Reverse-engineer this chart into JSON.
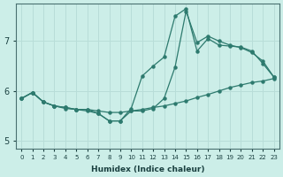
{
  "xlabel": "Humidex (Indice chaleur)",
  "bg_color": "#cceee8",
  "line_color": "#2d7a6e",
  "grid_color": "#b8ddd8",
  "xlim": [
    -0.5,
    23.5
  ],
  "ylim": [
    4.85,
    7.75
  ],
  "yticks": [
    5,
    6,
    7
  ],
  "xticks": [
    0,
    1,
    2,
    3,
    4,
    5,
    6,
    7,
    8,
    9,
    10,
    11,
    12,
    13,
    14,
    15,
    16,
    17,
    18,
    19,
    20,
    21,
    22,
    23
  ],
  "line1_x": [
    0,
    1,
    2,
    3,
    4,
    5,
    6,
    7,
    8,
    9,
    10,
    11,
    12,
    13,
    14,
    15,
    16,
    17,
    18,
    19,
    20,
    21,
    22,
    23
  ],
  "line1_y": [
    5.85,
    5.97,
    5.78,
    5.7,
    5.67,
    5.63,
    5.63,
    5.6,
    5.57,
    5.57,
    5.6,
    5.63,
    5.67,
    5.7,
    5.75,
    5.8,
    5.87,
    5.93,
    6.0,
    6.07,
    6.12,
    6.17,
    6.2,
    6.25
  ],
  "line2_x": [
    0,
    1,
    2,
    3,
    4,
    5,
    6,
    7,
    8,
    9,
    10,
    11,
    12,
    13,
    14,
    15,
    16,
    17,
    18,
    19,
    20,
    21,
    22,
    23
  ],
  "line2_y": [
    5.85,
    5.97,
    5.78,
    5.7,
    5.67,
    5.63,
    5.63,
    5.55,
    5.4,
    5.4,
    5.6,
    5.6,
    5.65,
    5.85,
    6.48,
    7.6,
    6.97,
    7.1,
    7.0,
    6.92,
    6.87,
    6.77,
    6.6,
    6.28
  ],
  "line3_x": [
    0,
    1,
    2,
    3,
    4,
    5,
    6,
    7,
    8,
    9,
    10,
    11,
    12,
    13,
    14,
    15,
    16,
    17,
    18,
    19,
    20,
    21,
    22,
    23
  ],
  "line3_y": [
    5.85,
    5.97,
    5.78,
    5.7,
    5.65,
    5.63,
    5.6,
    5.55,
    5.4,
    5.4,
    5.65,
    6.3,
    6.5,
    6.68,
    7.5,
    7.65,
    6.8,
    7.05,
    6.92,
    6.9,
    6.88,
    6.8,
    6.55,
    6.28
  ]
}
